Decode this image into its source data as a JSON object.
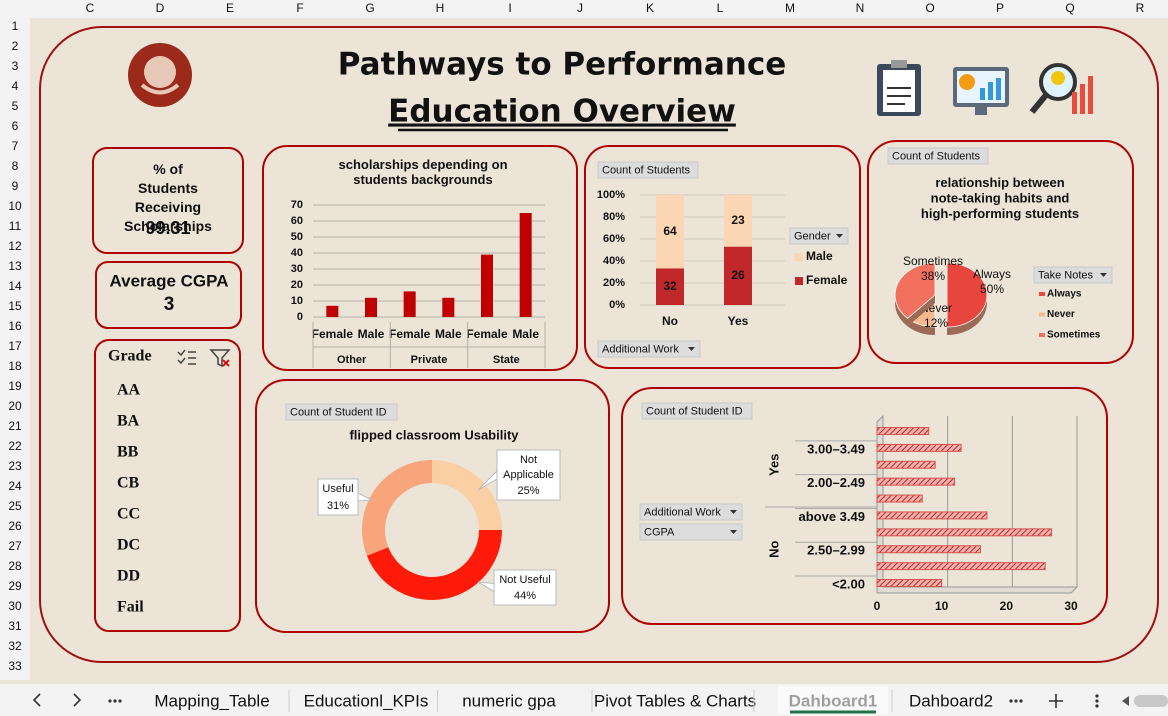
{
  "sheet": {
    "columns": [
      "C",
      "D",
      "E",
      "F",
      "G",
      "H",
      "I",
      "J",
      "K",
      "L",
      "M",
      "N",
      "O",
      "P",
      "Q",
      "R"
    ],
    "rows": [
      1,
      2,
      3,
      4,
      5,
      6,
      7,
      8,
      9,
      10,
      11,
      12,
      13,
      14,
      15,
      16,
      17,
      18,
      19,
      20,
      21,
      22,
      23,
      24,
      25,
      26,
      27,
      28,
      29,
      30,
      31,
      32,
      33
    ]
  },
  "header": {
    "title": "Pathways to Performance",
    "subtitle": "Education Overview"
  },
  "kpis": [
    {
      "label": "% of Students Receiving Scholarships",
      "value": 99.31
    },
    {
      "label": "Average CGPA",
      "value": 3
    }
  ],
  "slicer": {
    "title": "Grade",
    "items": [
      "AA",
      "BA",
      "BB",
      "CB",
      "CC",
      "DC",
      "DD",
      "Fail"
    ]
  },
  "chart_data": [
    {
      "type": "bar",
      "title": "scholarships depending on students backgrounds",
      "categories": [
        "Female",
        "Male",
        "Female",
        "Male",
        "Female",
        "Male"
      ],
      "group_labels": [
        "Other",
        "Private",
        "State"
      ],
      "values": [
        7,
        12,
        16,
        12,
        39,
        65
      ],
      "color": "#c00000",
      "ylim": [
        0,
        70
      ],
      "yticks": [
        0,
        10,
        20,
        30,
        40,
        50,
        60,
        70
      ],
      "grid": true
    },
    {
      "type": "stacked_percent_bar",
      "field_buttons": [
        "Count of Students",
        "Additional Work"
      ],
      "categories": [
        "No",
        "Yes"
      ],
      "legend_title": "Gender",
      "series": [
        {
          "name": "Male",
          "color": "#fcd5b4",
          "values": [
            64,
            23
          ]
        },
        {
          "name": "Female",
          "color": "#c0282b",
          "values": [
            32,
            26
          ]
        }
      ],
      "ylim": [
        0,
        100
      ],
      "yticks": [
        {
          "value": 0,
          "label": "0%"
        },
        {
          "value": 20,
          "label": "20%"
        },
        {
          "value": 40,
          "label": "40%"
        },
        {
          "value": 60,
          "label": "60%"
        },
        {
          "value": 80,
          "label": "80%"
        },
        {
          "value": 100,
          "label": "100%"
        }
      ],
      "grid": true
    },
    {
      "type": "pie",
      "field_buttons": [
        "Count of Students"
      ],
      "title": "relationship between note-taking habits and high-performing students",
      "legend_title": "Take Notes",
      "categories": [
        "Always",
        "Never",
        "Sometimes"
      ],
      "values": [
        50,
        12,
        38
      ],
      "value_labels": [
        "50%",
        "12%",
        "38%"
      ],
      "colors": [
        "#e8453c",
        "#f7b98e",
        "#f2705e"
      ]
    },
    {
      "type": "doughnut",
      "field_buttons": [
        "Count of Student ID"
      ],
      "title": "flipped classroom Usability",
      "categories": [
        "Not Applicable",
        "Not Useful",
        "Useful"
      ],
      "values": [
        25,
        44,
        31
      ],
      "value_labels": [
        "25%",
        "44%",
        "31%"
      ],
      "colors": [
        "#fbcfa4",
        "#ff1a0a",
        "#f9a57c"
      ]
    },
    {
      "type": "hbar",
      "field_buttons": [
        "Count of Student ID",
        "Additional Work",
        "CGPA"
      ],
      "group_labels": [
        "Yes",
        "No"
      ],
      "categories": [
        null,
        "3.00–3.49",
        null,
        "2.00–2.49",
        null,
        "above 3.49",
        null,
        "2.50–2.99",
        null,
        "<2.00"
      ],
      "values": [
        8,
        13,
        9,
        12,
        7,
        17,
        27,
        16,
        26,
        10
      ],
      "color": "#d9534f",
      "xlim": [
        0,
        30
      ],
      "xticks": [
        0,
        10,
        20,
        30
      ],
      "grid": true
    }
  ],
  "tabs": {
    "items": [
      "Mapping_Table",
      "Educationl_KPIs",
      "numeric gpa",
      "Pivot Tables & Charts",
      "Dahboard1",
      "Dahboard2"
    ],
    "active": 4
  }
}
